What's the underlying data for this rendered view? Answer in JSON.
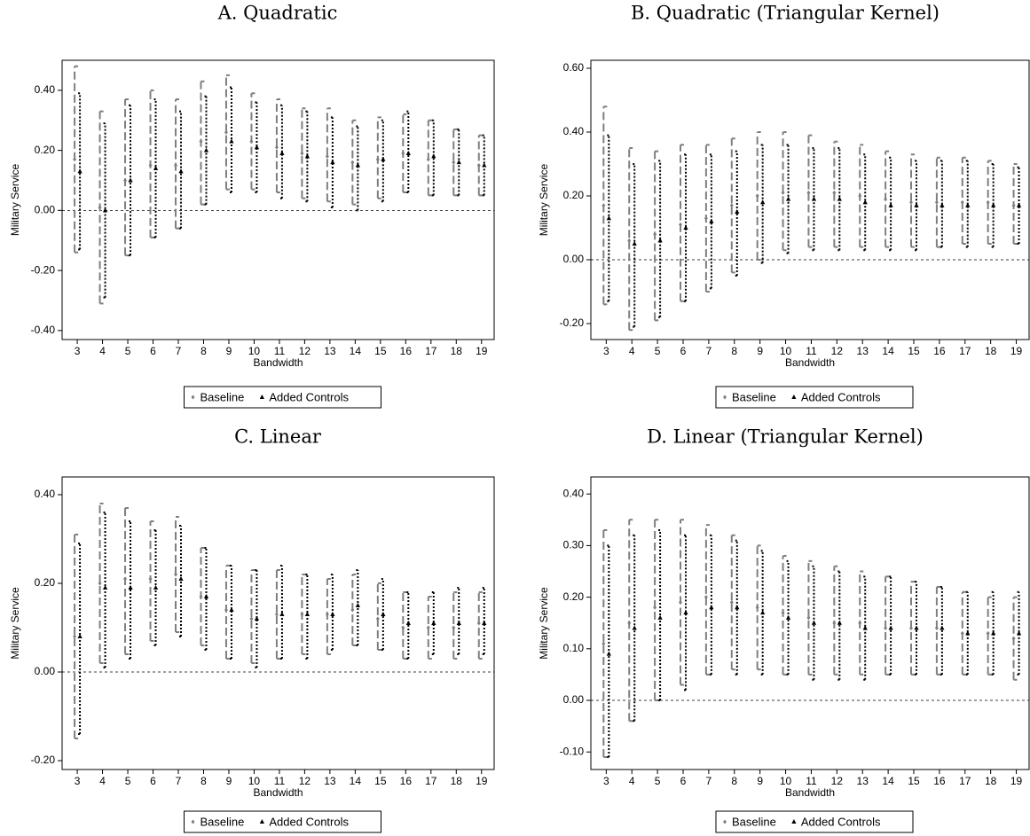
{
  "chart_data": [
    {
      "type": "errorbar",
      "title": "A. Quadratic",
      "xlabel": "Bandwidth",
      "ylabel": "Military Service",
      "x": [
        3,
        4,
        5,
        6,
        7,
        8,
        9,
        10,
        11,
        12,
        13,
        14,
        15,
        16,
        17,
        18,
        19
      ],
      "xlim": [
        2.4,
        19.5
      ],
      "xticks": [
        3,
        4,
        5,
        6,
        7,
        8,
        9,
        10,
        11,
        12,
        13,
        14,
        15,
        16,
        17,
        18,
        19
      ],
      "ylim": [
        -0.43,
        0.5
      ],
      "yticks": [
        {
          "value": -0.4,
          "label": "-0.40"
        },
        {
          "value": -0.2,
          "label": "-0.20"
        },
        {
          "value": 0,
          "label": "0.00"
        },
        {
          "value": 0.2,
          "label": "0.20"
        },
        {
          "value": 0.4,
          "label": "0.40"
        }
      ],
      "hline": 0,
      "series": [
        {
          "name": "Baseline",
          "color": "#7f7f7f",
          "values": [
            0.17,
            0.01,
            0.1,
            0.15,
            0.15,
            0.23,
            0.26,
            0.23,
            0.21,
            0.19,
            0.18,
            0.16,
            0.17,
            0.19,
            0.17,
            0.16,
            0.15
          ],
          "lower": [
            -0.14,
            -0.31,
            -0.15,
            -0.09,
            -0.06,
            0.02,
            0.07,
            0.07,
            0.06,
            0.04,
            0.03,
            0.02,
            0.04,
            0.06,
            0.05,
            0.05,
            0.05
          ],
          "upper": [
            0.48,
            0.33,
            0.37,
            0.4,
            0.37,
            0.43,
            0.45,
            0.39,
            0.37,
            0.34,
            0.34,
            0.3,
            0.31,
            0.32,
            0.3,
            0.27,
            0.25
          ]
        },
        {
          "name": "Added Controls",
          "color": "#000000",
          "values": [
            0.13,
            0.0,
            0.1,
            0.14,
            0.13,
            0.2,
            0.23,
            0.21,
            0.19,
            0.18,
            0.16,
            0.15,
            0.17,
            0.19,
            0.18,
            0.16,
            0.15
          ],
          "lower": [
            -0.13,
            -0.29,
            -0.15,
            -0.09,
            -0.06,
            0.02,
            0.06,
            0.06,
            0.04,
            0.03,
            0.01,
            0.0,
            0.03,
            0.06,
            0.05,
            0.05,
            0.05
          ],
          "upper": [
            0.39,
            0.29,
            0.35,
            0.37,
            0.33,
            0.38,
            0.41,
            0.36,
            0.35,
            0.33,
            0.31,
            0.28,
            0.3,
            0.33,
            0.3,
            0.27,
            0.25
          ]
        }
      ]
    },
    {
      "type": "errorbar",
      "title": "B. Quadratic (Triangular Kernel)",
      "xlabel": "Bandwidth",
      "ylabel": "Military Service",
      "x": [
        3,
        4,
        5,
        6,
        7,
        8,
        9,
        10,
        11,
        12,
        13,
        14,
        15,
        16,
        17,
        18,
        19
      ],
      "xlim": [
        2.4,
        19.5
      ],
      "xticks": [
        3,
        4,
        5,
        6,
        7,
        8,
        9,
        10,
        11,
        12,
        13,
        14,
        15,
        16,
        17,
        18,
        19
      ],
      "ylim": [
        -0.25,
        0.625
      ],
      "yticks": [
        {
          "value": -0.2,
          "label": "-0.20"
        },
        {
          "value": 0,
          "label": "0.00"
        },
        {
          "value": 0.2,
          "label": "0.20"
        },
        {
          "value": 0.4,
          "label": "0.40"
        },
        {
          "value": 0.6,
          "label": "0.60"
        }
      ],
      "hline": 0,
      "series": [
        {
          "name": "Baseline",
          "color": "#7f7f7f",
          "values": [
            0.17,
            0.06,
            0.08,
            0.11,
            0.13,
            0.17,
            0.2,
            0.21,
            0.21,
            0.21,
            0.2,
            0.19,
            0.18,
            0.18,
            0.18,
            0.18,
            0.17
          ],
          "lower": [
            -0.14,
            -0.22,
            -0.19,
            -0.13,
            -0.1,
            -0.04,
            0.0,
            0.03,
            0.04,
            0.04,
            0.04,
            0.04,
            0.04,
            0.04,
            0.05,
            0.05,
            0.05
          ],
          "upper": [
            0.48,
            0.35,
            0.34,
            0.36,
            0.36,
            0.38,
            0.4,
            0.4,
            0.39,
            0.37,
            0.36,
            0.34,
            0.33,
            0.32,
            0.32,
            0.31,
            0.3
          ]
        },
        {
          "name": "Added Controls",
          "color": "#000000",
          "values": [
            0.13,
            0.05,
            0.06,
            0.1,
            0.12,
            0.15,
            0.18,
            0.19,
            0.19,
            0.19,
            0.18,
            0.17,
            0.17,
            0.17,
            0.17,
            0.17,
            0.17
          ],
          "lower": [
            -0.13,
            -0.21,
            -0.18,
            -0.13,
            -0.09,
            -0.05,
            -0.01,
            0.02,
            0.03,
            0.03,
            0.03,
            0.03,
            0.03,
            0.04,
            0.04,
            0.04,
            0.05
          ],
          "upper": [
            0.39,
            0.3,
            0.31,
            0.33,
            0.33,
            0.34,
            0.36,
            0.36,
            0.35,
            0.35,
            0.33,
            0.32,
            0.31,
            0.31,
            0.31,
            0.3,
            0.29
          ]
        }
      ]
    },
    {
      "type": "errorbar",
      "title": "C. Linear",
      "xlabel": "Bandwidth",
      "ylabel": "Military Service",
      "x": [
        3,
        4,
        5,
        6,
        7,
        8,
        9,
        10,
        11,
        12,
        13,
        14,
        15,
        16,
        17,
        18,
        19
      ],
      "xlim": [
        2.4,
        19.5
      ],
      "xticks": [
        3,
        4,
        5,
        6,
        7,
        8,
        9,
        10,
        11,
        12,
        13,
        14,
        15,
        16,
        17,
        18,
        19
      ],
      "ylim": [
        -0.22,
        0.44
      ],
      "yticks": [
        {
          "value": -0.2,
          "label": "-0.20"
        },
        {
          "value": 0,
          "label": "0.00"
        },
        {
          "value": 0.2,
          "label": "0.20"
        },
        {
          "value": 0.4,
          "label": "0.40"
        }
      ],
      "hline": 0,
      "series": [
        {
          "name": "Baseline",
          "color": "#7f7f7f",
          "values": [
            0.08,
            0.2,
            0.21,
            0.21,
            0.22,
            0.17,
            0.14,
            0.12,
            0.13,
            0.13,
            0.13,
            0.14,
            0.12,
            0.1,
            0.1,
            0.1,
            0.11
          ],
          "lower": [
            -0.15,
            0.02,
            0.04,
            0.07,
            0.09,
            0.06,
            0.03,
            0.02,
            0.03,
            0.04,
            0.04,
            0.06,
            0.05,
            0.03,
            0.03,
            0.03,
            0.03
          ],
          "upper": [
            0.31,
            0.38,
            0.37,
            0.34,
            0.35,
            0.28,
            0.24,
            0.23,
            0.23,
            0.22,
            0.21,
            0.22,
            0.2,
            0.18,
            0.17,
            0.18,
            0.18
          ]
        },
        {
          "name": "Added Controls",
          "color": "#000000",
          "values": [
            0.08,
            0.19,
            0.19,
            0.19,
            0.21,
            0.17,
            0.14,
            0.12,
            0.13,
            0.13,
            0.13,
            0.15,
            0.13,
            0.11,
            0.11,
            0.11,
            0.11
          ],
          "lower": [
            -0.14,
            0.01,
            0.03,
            0.06,
            0.08,
            0.05,
            0.03,
            0.01,
            0.03,
            0.03,
            0.05,
            0.06,
            0.05,
            0.03,
            0.04,
            0.04,
            0.04
          ],
          "upper": [
            0.29,
            0.36,
            0.34,
            0.32,
            0.33,
            0.28,
            0.24,
            0.23,
            0.24,
            0.22,
            0.22,
            0.23,
            0.21,
            0.18,
            0.18,
            0.19,
            0.19
          ]
        }
      ]
    },
    {
      "type": "errorbar",
      "title": "D. Linear (Triangular Kernel)",
      "xlabel": "Bandwidth",
      "ylabel": "Military Service",
      "x": [
        3,
        4,
        5,
        6,
        7,
        8,
        9,
        10,
        11,
        12,
        13,
        14,
        15,
        16,
        17,
        18,
        19
      ],
      "xlim": [
        2.4,
        19.5
      ],
      "xticks": [
        3,
        4,
        5,
        6,
        7,
        8,
        9,
        10,
        11,
        12,
        13,
        14,
        15,
        16,
        17,
        18,
        19
      ],
      "ylim": [
        -0.134,
        0.433
      ],
      "yticks": [
        {
          "value": -0.1,
          "label": "-0.10"
        },
        {
          "value": 0,
          "label": "0.00"
        },
        {
          "value": 0.1,
          "label": "0.10"
        },
        {
          "value": 0.2,
          "label": "0.20"
        },
        {
          "value": 0.3,
          "label": "0.30"
        },
        {
          "value": 0.4,
          "label": "0.40"
        }
      ],
      "hline": 0,
      "series": [
        {
          "name": "Baseline",
          "color": "#7f7f7f",
          "values": [
            0.11,
            0.15,
            0.18,
            0.19,
            0.2,
            0.19,
            0.18,
            0.17,
            0.16,
            0.15,
            0.15,
            0.14,
            0.14,
            0.14,
            0.13,
            0.13,
            0.12
          ],
          "lower": [
            -0.11,
            -0.04,
            0.0,
            0.03,
            0.05,
            0.06,
            0.06,
            0.05,
            0.05,
            0.05,
            0.05,
            0.05,
            0.05,
            0.05,
            0.05,
            0.05,
            0.04
          ],
          "upper": [
            0.33,
            0.35,
            0.35,
            0.35,
            0.34,
            0.32,
            0.3,
            0.28,
            0.27,
            0.26,
            0.25,
            0.24,
            0.23,
            0.22,
            0.21,
            0.2,
            0.2
          ]
        },
        {
          "name": "Added Controls",
          "color": "#000000",
          "values": [
            0.09,
            0.14,
            0.16,
            0.17,
            0.18,
            0.18,
            0.17,
            0.16,
            0.15,
            0.15,
            0.14,
            0.14,
            0.14,
            0.14,
            0.13,
            0.13,
            0.13
          ],
          "lower": [
            -0.11,
            -0.04,
            0.0,
            0.02,
            0.05,
            0.05,
            0.05,
            0.05,
            0.04,
            0.04,
            0.04,
            0.05,
            0.05,
            0.05,
            0.05,
            0.05,
            0.05
          ],
          "upper": [
            0.3,
            0.32,
            0.33,
            0.32,
            0.32,
            0.31,
            0.29,
            0.27,
            0.26,
            0.25,
            0.24,
            0.24,
            0.23,
            0.22,
            0.21,
            0.21,
            0.21
          ]
        }
      ]
    }
  ]
}
